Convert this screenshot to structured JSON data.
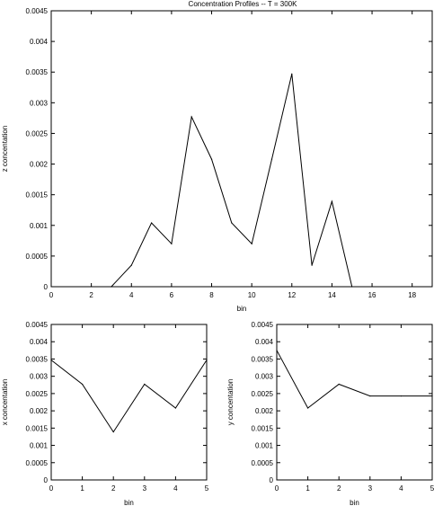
{
  "title": "Concentration Profiles -- T = 300K",
  "chart_data": [
    {
      "id": "z",
      "type": "line",
      "xlabel": "bin",
      "ylabel": "z concentation",
      "xlim": [
        0,
        19
      ],
      "ylim": [
        0,
        0.0045
      ],
      "xticks": [
        0,
        2,
        4,
        6,
        8,
        10,
        12,
        14,
        16,
        18
      ],
      "yticks": [
        0,
        0.0005,
        0.001,
        0.0015,
        0.002,
        0.0025,
        0.003,
        0.0035,
        0.004,
        0.0045
      ],
      "ytick_labels": [
        "0",
        "0.0005",
        "0.001",
        "0.0015",
        "0.002",
        "0.0025",
        "0.003",
        "0.0035",
        "0.004",
        "0.0045"
      ],
      "x": [
        3,
        4,
        5,
        6,
        7,
        8,
        9,
        10,
        11,
        12,
        13,
        14,
        15
      ],
      "y": [
        0,
        0.00035,
        0.00104,
        0.0007,
        0.00277,
        0.00208,
        0.00104,
        0.0007,
        0.00208,
        0.00347,
        0.00035,
        0.00139,
        0
      ]
    },
    {
      "id": "x",
      "type": "line",
      "xlabel": "bin",
      "ylabel": "x concentation",
      "xlim": [
        0,
        5
      ],
      "ylim": [
        0,
        0.0045
      ],
      "xticks": [
        0,
        1,
        2,
        3,
        4,
        5
      ],
      "yticks": [
        0,
        0.0005,
        0.001,
        0.0015,
        0.002,
        0.0025,
        0.003,
        0.0035,
        0.004,
        0.0045
      ],
      "ytick_labels": [
        "0",
        "0.0005",
        "0.001",
        "0.0015",
        "0.002",
        "0.0025",
        "0.003",
        "0.0035",
        "0.004",
        "0.0045"
      ],
      "x": [
        0,
        1,
        2,
        3,
        4,
        5
      ],
      "y": [
        0.00347,
        0.00277,
        0.00139,
        0.00277,
        0.00208,
        0.00347
      ]
    },
    {
      "id": "y",
      "type": "line",
      "xlabel": "bin",
      "ylabel": "y concentation",
      "xlim": [
        0,
        5
      ],
      "ylim": [
        0,
        0.0045
      ],
      "xticks": [
        0,
        1,
        2,
        3,
        4,
        5
      ],
      "yticks": [
        0,
        0.0005,
        0.001,
        0.0015,
        0.002,
        0.0025,
        0.003,
        0.0035,
        0.004,
        0.0045
      ],
      "ytick_labels": [
        "0",
        "0.0005",
        "0.001",
        "0.0015",
        "0.002",
        "0.0025",
        "0.003",
        "0.0035",
        "0.004",
        "0.0045"
      ],
      "x": [
        0,
        1,
        2,
        3,
        4,
        5
      ],
      "y": [
        0.00375,
        0.00208,
        0.00277,
        0.00243,
        0.00243,
        0.00243
      ]
    }
  ]
}
